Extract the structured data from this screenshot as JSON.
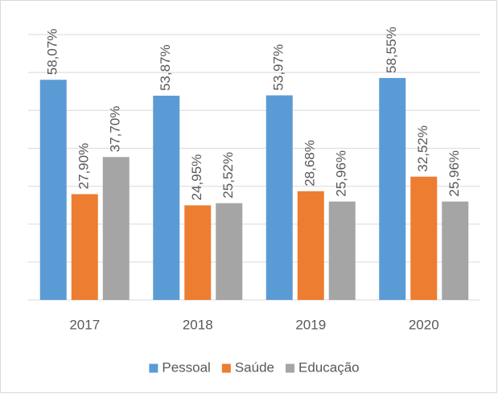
{
  "chart_data": {
    "type": "bar",
    "categories": [
      "2017",
      "2018",
      "2019",
      "2020"
    ],
    "series": [
      {
        "name": "Pessoal",
        "color": "#5b9bd5",
        "values": [
          58.07,
          53.87,
          53.97,
          58.55
        ],
        "value_labels": [
          "58,07%",
          "53,87%",
          "53,97%",
          "58,55%"
        ]
      },
      {
        "name": "Saúde",
        "color": "#ed7d31",
        "values": [
          27.9,
          24.95,
          28.68,
          32.52
        ],
        "value_labels": [
          "27,90%",
          "24,95%",
          "28,68%",
          "32,52%"
        ]
      },
      {
        "name": "Educação",
        "color": "#a5a5a5",
        "values": [
          37.7,
          25.52,
          25.96,
          25.96
        ],
        "value_labels": [
          "37,70%",
          "25,52%",
          "25,96%",
          "25,96%"
        ]
      }
    ],
    "ylim": [
      0,
      70
    ],
    "yticks": [
      0,
      10,
      20,
      30,
      40,
      50,
      60,
      70
    ],
    "grid": true,
    "legend": "bottom"
  }
}
